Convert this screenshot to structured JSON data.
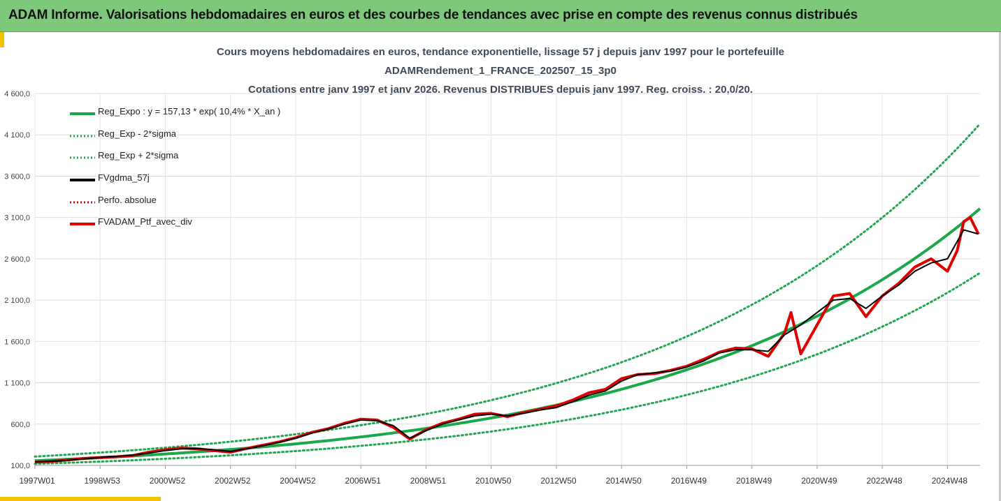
{
  "header": {
    "title": "ADAM Informe. Valorisations hebdomadaires en euros et des courbes de tendances avec prise en compte des revenus connus distribués"
  },
  "colors": {
    "banner": "#7ec87b",
    "reg_expo": "#1aa84a",
    "sigma": "#22a64f",
    "fvgdma": "#000000",
    "perfo": "#e00000",
    "fvadam": "#e00000"
  },
  "chart_data": {
    "type": "line",
    "title_lines": [
      "Cours moyens hebdomadaires  en euros, tendance exponentielle, lissage 57 j depuis janv 1997 pour le portefeuille",
      "ADAMRendement_1_FRANCE_202507_15_3p0",
      "Cotations entre janv 1997 et janv 2026. Revenus DISTRIBUES depuis janv 1997. Reg. croiss. : 20,0/20."
    ],
    "x_ticks": [
      "1997W01",
      "1998W53",
      "2000W52",
      "2002W52",
      "2004W52",
      "2006W51",
      "2008W51",
      "2010W50",
      "2012W50",
      "2014W50",
      "2016W49",
      "2018W49",
      "2020W49",
      "2022W48",
      "2024W48"
    ],
    "x_range": [
      1997.0,
      2026.0
    ],
    "y_ticks": [
      "100,0",
      "600,0",
      "1 100,0",
      "1 600,0",
      "2 100,0",
      "2 600,0",
      "3 100,0",
      "3 600,0",
      "4 100,0",
      "4 600,0"
    ],
    "ylim": [
      100,
      4600
    ],
    "grid": true,
    "legend_position": "top-left",
    "regression": {
      "a": 157.13,
      "rate": 0.104,
      "sigma_factor": 1.32
    },
    "series": [
      {
        "name": "Reg_Expo : y = 157,13 * exp( 10,4% *  X_an )",
        "kind": "regression"
      },
      {
        "name": "Reg_Exp - 2*sigma",
        "kind": "lower_band"
      },
      {
        "name": "Reg_Exp + 2*sigma",
        "kind": "upper_band"
      },
      {
        "name": "FVgdma_57j",
        "kind": "smoothed",
        "x": [
          1997.0,
          1997.5,
          1998.0,
          1998.5,
          1999.0,
          1999.5,
          2000.0,
          2000.5,
          2001.0,
          2001.5,
          2002.0,
          2002.5,
          2003.0,
          2003.5,
          2004.0,
          2004.5,
          2005.0,
          2005.5,
          2006.0,
          2006.5,
          2007.0,
          2007.5,
          2008.0,
          2008.5,
          2009.0,
          2009.5,
          2010.0,
          2010.5,
          2011.0,
          2011.5,
          2012.0,
          2012.5,
          2013.0,
          2013.5,
          2014.0,
          2014.5,
          2015.0,
          2015.5,
          2016.0,
          2016.5,
          2017.0,
          2017.5,
          2018.0,
          2018.5,
          2019.0,
          2019.5,
          2020.0,
          2020.5,
          2021.0,
          2021.5,
          2022.0,
          2022.5,
          2023.0,
          2023.5,
          2024.0,
          2024.5,
          2025.0,
          2025.5,
          2025.95
        ],
        "y": [
          145,
          150,
          162,
          178,
          200,
          210,
          225,
          250,
          280,
          300,
          305,
          290,
          270,
          300,
          340,
          380,
          430,
          490,
          540,
          600,
          650,
          640,
          580,
          430,
          520,
          600,
          650,
          700,
          720,
          700,
          730,
          770,
          800,
          870,
          950,
          1000,
          1120,
          1200,
          1220,
          1240,
          1290,
          1360,
          1460,
          1500,
          1500,
          1480,
          1680,
          1800,
          1950,
          2100,
          2120,
          2000,
          2150,
          2280,
          2450,
          2550,
          2600,
          2950,
          2900
        ]
      },
      {
        "name": "Perfo. absolue",
        "kind": "perfo"
      },
      {
        "name": "FVADAM_Ptf_avec_div",
        "kind": "portfolio",
        "x": [
          1997.0,
          1997.5,
          1998.0,
          1998.5,
          1999.0,
          1999.5,
          2000.0,
          2000.5,
          2001.0,
          2001.5,
          2002.0,
          2002.5,
          2003.0,
          2003.5,
          2004.0,
          2004.5,
          2005.0,
          2005.5,
          2006.0,
          2006.5,
          2007.0,
          2007.5,
          2008.0,
          2008.5,
          2009.0,
          2009.5,
          2010.0,
          2010.5,
          2011.0,
          2011.5,
          2012.0,
          2012.5,
          2013.0,
          2013.5,
          2014.0,
          2014.5,
          2015.0,
          2015.5,
          2016.0,
          2016.5,
          2017.0,
          2017.5,
          2018.0,
          2018.5,
          2019.0,
          2019.5,
          2020.0,
          2020.2,
          2020.5,
          2021.0,
          2021.5,
          2022.0,
          2022.5,
          2023.0,
          2023.5,
          2024.0,
          2024.5,
          2025.0,
          2025.3,
          2025.5,
          2025.7,
          2025.95
        ],
        "y": [
          140,
          148,
          165,
          185,
          195,
          205,
          220,
          260,
          290,
          310,
          300,
          280,
          260,
          305,
          345,
          385,
          435,
          500,
          545,
          610,
          660,
          650,
          560,
          420,
          530,
          610,
          660,
          720,
          730,
          690,
          740,
          780,
          820,
          890,
          980,
          1020,
          1150,
          1200,
          1210,
          1250,
          1300,
          1380,
          1470,
          1520,
          1510,
          1420,
          1700,
          1950,
          1450,
          1800,
          2150,
          2180,
          1900,
          2150,
          2300,
          2500,
          2600,
          2450,
          2700,
          3050,
          3100,
          2900
        ]
      }
    ]
  }
}
